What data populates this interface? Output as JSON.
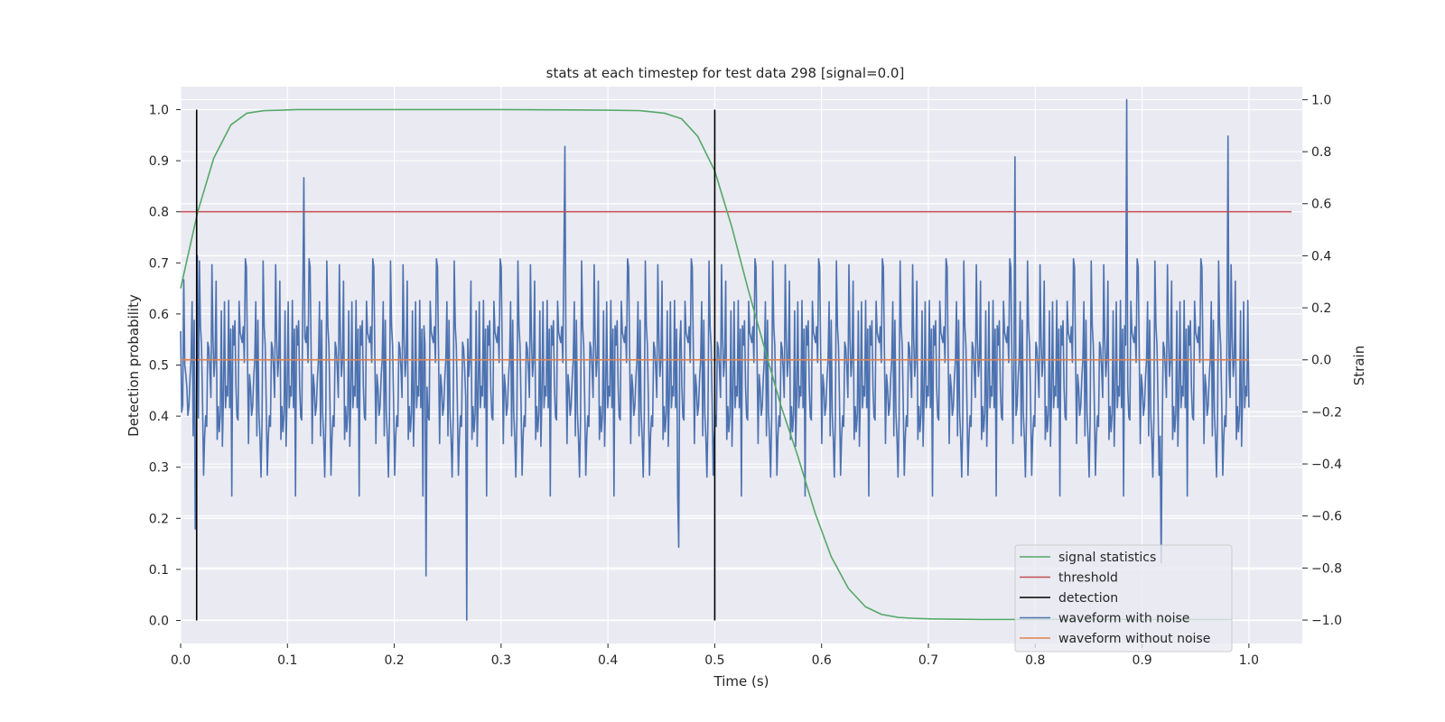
{
  "chart_data": {
    "type": "line",
    "title": "stats at each timestep for test data 298 [signal=0.0]",
    "xlabel": "Time (s)",
    "ylabel": "Detection probability",
    "ylabel_right": "Strain",
    "xlim": [
      0.0,
      1.05
    ],
    "ylim": [
      -0.045,
      1.045
    ],
    "ylim_right": [
      -1.09,
      1.05
    ],
    "x_ticks": [
      "0.0",
      "0.1",
      "0.2",
      "0.3",
      "0.4",
      "0.5",
      "0.6",
      "0.7",
      "0.8",
      "0.9",
      "1.0"
    ],
    "y_ticks": [
      "0.0",
      "0.1",
      "0.2",
      "0.3",
      "0.4",
      "0.5",
      "0.6",
      "0.7",
      "0.8",
      "0.9",
      "1.0"
    ],
    "y_ticks_right": [
      "−1.0",
      "−0.8",
      "−0.6",
      "−0.4",
      "−0.2",
      "0.0",
      "0.2",
      "0.4",
      "0.6",
      "0.8",
      "1.0"
    ],
    "grid": true,
    "legend_position": "bottom-right",
    "series": [
      {
        "name": "signal statistics",
        "color": "#55a868",
        "axis": "left",
        "x": [
          0.0,
          0.016,
          0.031,
          0.047,
          0.062,
          0.078,
          0.094,
          0.109,
          0.2,
          0.3,
          0.4,
          0.43,
          0.453,
          0.469,
          0.484,
          0.5,
          0.516,
          0.531,
          0.547,
          0.562,
          0.578,
          0.594,
          0.609,
          0.625,
          0.641,
          0.656,
          0.672,
          0.688,
          0.703,
          0.75,
          0.8,
          0.9,
          0.984
        ],
        "y": [
          0.65,
          0.8,
          0.905,
          0.97,
          0.993,
          0.998,
          0.999,
          1.0,
          1.0,
          1.0,
          0.999,
          0.998,
          0.993,
          0.982,
          0.948,
          0.88,
          0.77,
          0.65,
          0.53,
          0.42,
          0.32,
          0.21,
          0.125,
          0.063,
          0.027,
          0.012,
          0.006,
          0.004,
          0.003,
          0.002,
          0.002,
          0.002,
          0.002
        ]
      },
      {
        "name": "threshold",
        "color": "#c44e52",
        "axis": "left",
        "x": [
          0.0,
          1.04
        ],
        "y": [
          0.8,
          0.8
        ]
      },
      {
        "name": "detection",
        "color": "#000000",
        "axis": "left",
        "segments": [
          {
            "x": 0.015,
            "y0": 0.0,
            "y1": 1.0
          },
          {
            "x": 0.5,
            "y0": 0.0,
            "y1": 1.0
          }
        ]
      },
      {
        "name": "waveform with noise",
        "color": "#4c72b0",
        "axis": "right",
        "x_range": [
          0.0,
          1.0
        ],
        "n_points": 1024,
        "y_range": [
          -1.0,
          1.0
        ],
        "noise_sigma": 0.22,
        "notable_points": [
          {
            "x": 0.016,
            "y": 0.4
          },
          {
            "x": 0.014,
            "y": -0.65
          },
          {
            "x": 0.115,
            "y": 0.7
          },
          {
            "x": 0.23,
            "y": -0.83
          },
          {
            "x": 0.268,
            "y": -1.0
          },
          {
            "x": 0.36,
            "y": 0.82
          },
          {
            "x": 0.466,
            "y": -0.72
          },
          {
            "x": 0.781,
            "y": 0.78
          },
          {
            "x": 0.886,
            "y": 1.0
          },
          {
            "x": 0.918,
            "y": -0.78
          },
          {
            "x": 0.98,
            "y": 0.86
          }
        ]
      },
      {
        "name": "waveform without noise",
        "color": "#dd8452",
        "axis": "right",
        "x": [
          0.0,
          1.0
        ],
        "y": [
          0.0,
          0.0
        ]
      }
    ]
  }
}
